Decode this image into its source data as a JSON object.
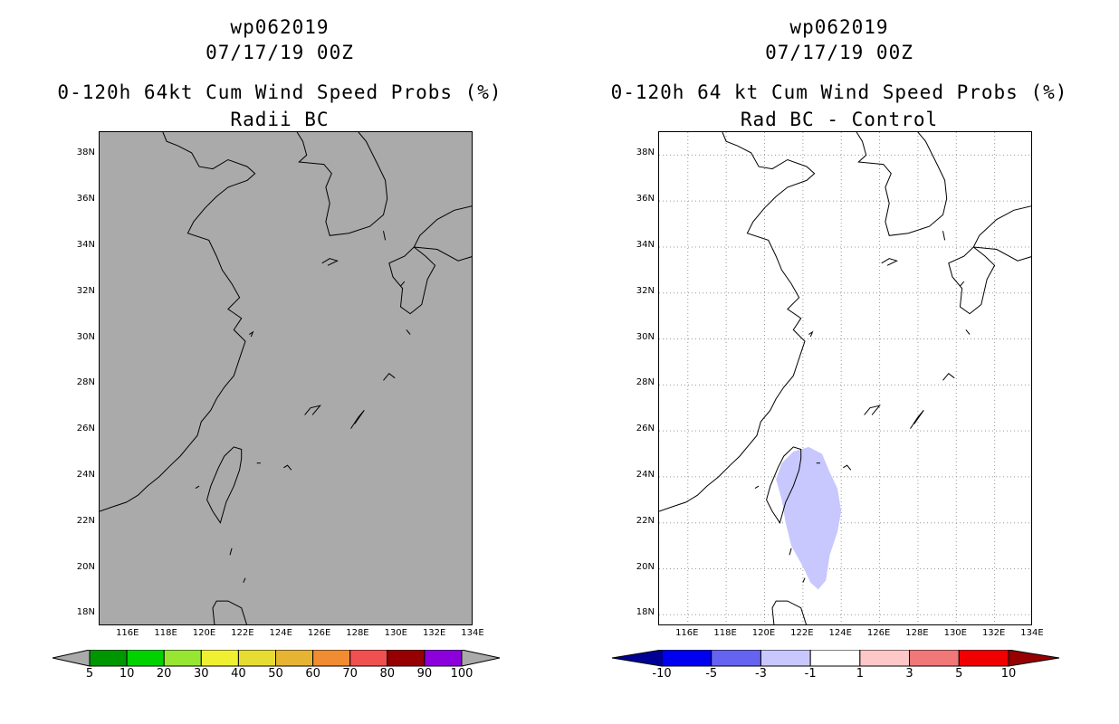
{
  "left": {
    "title1": "wp062019",
    "title2": "07/17/19 00Z",
    "title3": "0-120h 64kt Cum Wind Speed Probs (%)",
    "title4": "Radii BC",
    "background": "#aaaaaa",
    "colorbar": {
      "labels": [
        "5",
        "10",
        "20",
        "30",
        "40",
        "50",
        "60",
        "70",
        "80",
        "90",
        "100"
      ],
      "colors": [
        "#009600",
        "#00d200",
        "#96e632",
        "#f0f032",
        "#e6dc32",
        "#e6b432",
        "#f08c32",
        "#f05050",
        "#960000",
        "#8c00dc"
      ],
      "end_color": "#aaaaaa"
    }
  },
  "right": {
    "title1": "wp062019",
    "title2": "07/17/19 00Z",
    "title3": "0-120h 64 kt Cum Wind Speed Probs (%)",
    "title4": "Rad BC - Control",
    "background": "#ffffff",
    "shade_color": "#c8c8ff",
    "colorbar": {
      "labels": [
        "-10",
        "-5",
        "-3",
        "-1",
        "1",
        "3",
        "5",
        "10"
      ],
      "colors": [
        "#0000f0",
        "#6464f0",
        "#c8c8ff",
        "#ffffff",
        "#ffc8c8",
        "#f07878",
        "#f00000"
      ],
      "low_end_color": "#000096",
      "high_end_color": "#960000"
    }
  },
  "axes": {
    "lat_labels": [
      "38N",
      "36N",
      "34N",
      "32N",
      "30N",
      "28N",
      "26N",
      "24N",
      "22N",
      "20N",
      "18N"
    ],
    "lon_labels": [
      "116E",
      "118E",
      "120E",
      "122E",
      "124E",
      "126E",
      "128E",
      "130E",
      "132E",
      "134E"
    ]
  }
}
